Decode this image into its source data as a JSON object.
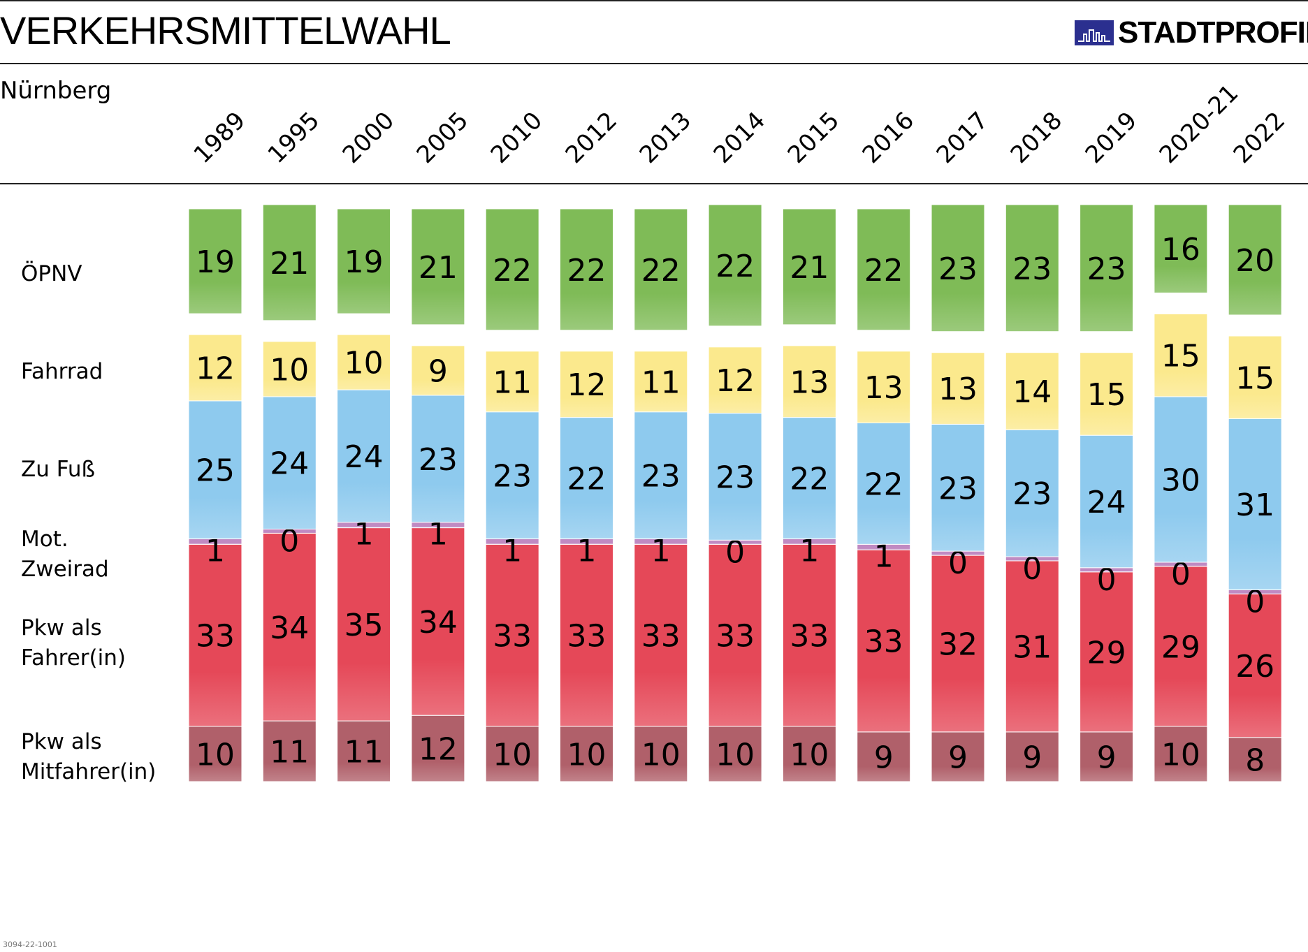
{
  "title": "VERKEHRSMITTELWAHL",
  "logo": {
    "word": "STADTPROFIL",
    "color": "#2b2f8f"
  },
  "subtitle": "Nürnberg",
  "footer": "3094-22-1001",
  "row_labels": {
    "oepnv": "ÖPNV",
    "fahrrad": "Fahrrad",
    "fuss": "Zu Fuß",
    "zweirad_1": "Mot.",
    "zweirad_2": "Zweirad",
    "fahrer_1": "Pkw als",
    "fahrer_2": "Fahrer(in)",
    "mitfahrer_1": "Pkw als",
    "mitfahrer_2": "Mitfahrer(in)"
  },
  "chart_data": {
    "type": "bar",
    "stacked": true,
    "categories": [
      "1989",
      "1995",
      "2000",
      "2005",
      "2010",
      "2012",
      "2013",
      "2014",
      "2015",
      "2016",
      "2017",
      "2018",
      "2019",
      "2020-21",
      "2022"
    ],
    "series": [
      {
        "name": "ÖPNV",
        "color": "#7fbb57",
        "values": [
          19,
          21,
          19,
          21,
          22,
          22,
          22,
          22,
          21,
          22,
          23,
          23,
          23,
          16,
          20
        ]
      },
      {
        "name": "Fahrrad",
        "color": "#fbe98d",
        "values": [
          12,
          10,
          10,
          9,
          11,
          12,
          11,
          12,
          13,
          13,
          13,
          14,
          15,
          15,
          15
        ]
      },
      {
        "name": "Zu Fuß",
        "color": "#8ecaee",
        "values": [
          25,
          24,
          24,
          23,
          23,
          22,
          23,
          23,
          22,
          22,
          23,
          23,
          24,
          30,
          31
        ]
      },
      {
        "name": "Mot. Zweirad",
        "color": "#c08ac2",
        "values": [
          1,
          0,
          1,
          1,
          1,
          1,
          1,
          0,
          1,
          1,
          0,
          0,
          0,
          0,
          0
        ]
      },
      {
        "name": "Pkw als Fahrer(in)",
        "color": "#e54858",
        "values": [
          33,
          34,
          35,
          34,
          33,
          33,
          33,
          33,
          33,
          33,
          32,
          31,
          29,
          29,
          26
        ]
      },
      {
        "name": "Pkw als Mitfahrer(in)",
        "color": "#b0606a",
        "values": [
          10,
          11,
          11,
          12,
          10,
          10,
          10,
          10,
          10,
          9,
          9,
          9,
          9,
          10,
          8
        ]
      }
    ],
    "unit": "%",
    "legend": "left-row-labels",
    "grid": false
  }
}
